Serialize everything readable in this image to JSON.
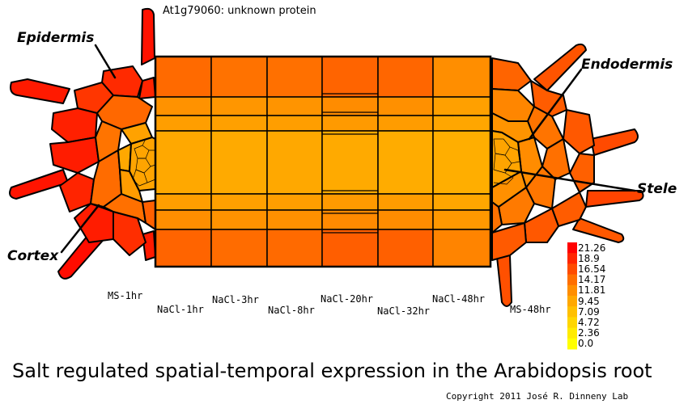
{
  "gene_label": "At1g79060: unknown protein",
  "tissues": {
    "epidermis": "Epidermis",
    "endodermis": "Endodermis",
    "stele": "Stele",
    "cortex": "Cortex"
  },
  "conditions": [
    "MS-1hr",
    "NaCl-1hr",
    "NaCl-3hr",
    "NaCl-8hr",
    "NaCl-20hr",
    "NaCl-32hr",
    "NaCl-48hr",
    "MS-48hr"
  ],
  "legend": {
    "values": [
      "21.26",
      "18.9",
      "16.54",
      "14.17",
      "11.81",
      "9.45",
      "7.09",
      "4.72",
      "2.36",
      "0.0"
    ],
    "colors": [
      "#ff0000",
      "#ff2600",
      "#ff4c00",
      "#ff6f00",
      "#ff8e00",
      "#ffa800",
      "#ffc000",
      "#ffd600",
      "#ffeb00",
      "#ffff00"
    ]
  },
  "caption": "Salt regulated spatial-temporal expression in the Arabidopsis root",
  "copyright": "Copyright 2011 José R. Dinneny Lab"
}
